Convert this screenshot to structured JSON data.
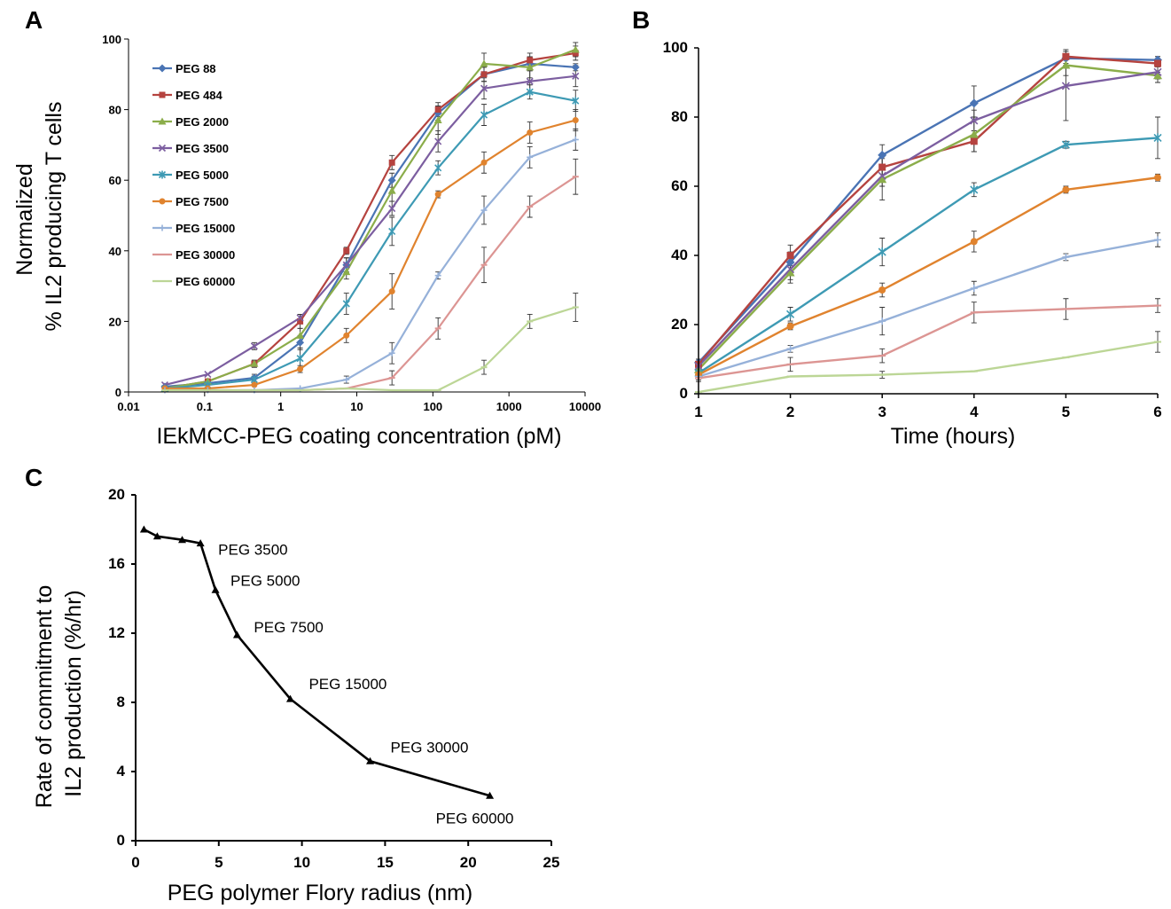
{
  "chart_data": [
    {
      "type": "line",
      "panel_label": "A",
      "xlabel": "IEkMCC-PEG coating concentration (pM)",
      "ylabel": "Normalized % IL2 producing T cells",
      "x_scale": "log",
      "xlim": [
        0.01,
        10000
      ],
      "ylim": [
        0,
        100
      ],
      "x_ticks": [
        0.01,
        0.1,
        1,
        10,
        100,
        1000,
        10000
      ],
      "x_tick_labels": [
        "0.01",
        "0.1",
        "1",
        "10",
        "100",
        "1000",
        "10000"
      ],
      "y_ticks": [
        0,
        20,
        40,
        60,
        80,
        100
      ],
      "legend_position": "top-left",
      "grid": false,
      "x": [
        0.03,
        0.11,
        0.45,
        1.8,
        7.3,
        29,
        117,
        470,
        1880,
        7500
      ],
      "series": [
        {
          "name": "PEG 88",
          "color": "#4a74b4",
          "marker": "diamond",
          "values": [
            1.5,
            2.5,
            4,
            14,
            36,
            60,
            79,
            90,
            93,
            92
          ],
          "errors": [
            0.5,
            0.5,
            1,
            2,
            2,
            2,
            2,
            2,
            2,
            1
          ]
        },
        {
          "name": "PEG 484",
          "color": "#b5433f",
          "marker": "square",
          "values": [
            1,
            3,
            8,
            20,
            40,
            65,
            80,
            90,
            94,
            96
          ],
          "errors": [
            0.5,
            0.5,
            1,
            2,
            1,
            2,
            2,
            2,
            2,
            2
          ]
        },
        {
          "name": "PEG 2000",
          "color": "#8bad4a",
          "marker": "triangle",
          "values": [
            1,
            3,
            8,
            16,
            34,
            57,
            77,
            93,
            92,
            97
          ],
          "errors": [
            0.5,
            0.5,
            1,
            2,
            2,
            3,
            4,
            3,
            3,
            2
          ]
        },
        {
          "name": "PEG 3500",
          "color": "#7c5ea0",
          "marker": "x",
          "values": [
            2,
            5,
            13,
            21,
            36,
            52,
            71,
            86,
            88,
            89.5
          ],
          "errors": [
            0.5,
            0.5,
            1,
            1,
            2,
            2,
            3,
            3,
            3,
            3
          ]
        },
        {
          "name": "PEG 5000",
          "color": "#3e9ab4",
          "marker": "asterisk",
          "values": [
            1,
            2,
            3.5,
            9.5,
            25,
            45.5,
            63.5,
            78.5,
            85,
            82.5
          ],
          "errors": [
            0.5,
            0.5,
            1,
            3,
            3,
            4,
            2,
            3,
            2,
            3
          ]
        },
        {
          "name": "PEG 7500",
          "color": "#e0832e",
          "marker": "circle",
          "values": [
            1,
            1,
            2,
            6.5,
            16,
            28.5,
            56,
            65,
            73.5,
            77
          ],
          "errors": [
            0.5,
            0.5,
            0.5,
            1,
            2,
            5,
            1,
            3,
            3,
            3
          ]
        },
        {
          "name": "PEG 15000",
          "color": "#96b1d9",
          "marker": "plus",
          "values": [
            0.5,
            0.5,
            0.5,
            1,
            3.5,
            11,
            33,
            51.5,
            66.5,
            71.5
          ],
          "errors": [
            0.5,
            0.5,
            0.5,
            0.5,
            1,
            3,
            1,
            4,
            3,
            3
          ]
        },
        {
          "name": "PEG 30000",
          "color": "#dc9593",
          "marker": "dash",
          "values": [
            0.5,
            0.5,
            0.5,
            0.5,
            1,
            4,
            18,
            36,
            52.5,
            61
          ],
          "errors": [
            0.5,
            0.5,
            0.5,
            0.5,
            0.5,
            2,
            3,
            5,
            3,
            5
          ]
        },
        {
          "name": "PEG 60000",
          "color": "#bcd696",
          "marker": "dash",
          "values": [
            0.5,
            0.5,
            0.5,
            0.5,
            1,
            0.5,
            0.5,
            7,
            20,
            24
          ],
          "errors": [
            0.5,
            0.5,
            0.5,
            0.5,
            0.5,
            0.5,
            0.5,
            2,
            2,
            4
          ]
        }
      ]
    },
    {
      "type": "line",
      "panel_label": "B",
      "xlabel": "Time (hours)",
      "ylabel": "",
      "xlim": [
        1,
        6
      ],
      "ylim": [
        0,
        100
      ],
      "x_ticks": [
        1,
        2,
        3,
        4,
        5,
        6
      ],
      "y_ticks": [
        0,
        20,
        40,
        60,
        80,
        100
      ],
      "grid": false,
      "x": [
        1,
        2,
        3,
        4,
        5,
        6
      ],
      "series": [
        {
          "color": "#4a74b4",
          "marker": "diamond",
          "values": [
            9,
            38,
            69,
            84,
            97,
            96.5
          ],
          "errors": [
            1,
            3,
            3,
            5,
            2,
            1
          ]
        },
        {
          "color": "#b5433f",
          "marker": "square",
          "values": [
            8.5,
            40,
            65.5,
            73,
            97.5,
            95.5
          ],
          "errors": [
            1,
            3,
            3,
            3,
            2,
            1
          ]
        },
        {
          "color": "#8bad4a",
          "marker": "triangle",
          "values": [
            7,
            35,
            62,
            75,
            95,
            92
          ],
          "errors": [
            1,
            3,
            6,
            5,
            3,
            1
          ]
        },
        {
          "color": "#7c5ea0",
          "marker": "x",
          "values": [
            8,
            36,
            63,
            79,
            89,
            93
          ],
          "errors": [
            1,
            3,
            3,
            3,
            10,
            3
          ]
        },
        {
          "color": "#3e9ab4",
          "marker": "asterisk",
          "values": [
            6,
            23,
            41,
            59,
            72,
            74
          ],
          "errors": [
            1,
            2,
            4,
            2,
            1,
            6
          ]
        },
        {
          "color": "#e0832e",
          "marker": "circle",
          "values": [
            5.5,
            19.5,
            30,
            44,
            59,
            62.5
          ],
          "errors": [
            1,
            1,
            2,
            3,
            1,
            1
          ]
        },
        {
          "color": "#96b1d9",
          "marker": "plus",
          "values": [
            5,
            13,
            21,
            30.5,
            39.5,
            44.5
          ],
          "errors": [
            1,
            1,
            4,
            2,
            1,
            2
          ]
        },
        {
          "color": "#dc9593",
          "marker": "dash",
          "values": [
            4.5,
            8.5,
            11,
            23.5,
            24.5,
            25.5
          ],
          "errors": [
            1,
            2,
            2,
            3,
            3,
            2
          ]
        },
        {
          "color": "#bcd696",
          "marker": "dash",
          "values": [
            0.5,
            5,
            5.5,
            6.5,
            10.5,
            15
          ],
          "errors": [
            0.5,
            0.5,
            1,
            0.5,
            0.5,
            3
          ]
        }
      ]
    },
    {
      "type": "line",
      "panel_label": "C",
      "xlabel": "PEG polymer Flory radius (nm)",
      "ylabel": "Rate of commitment to IL2 production (%/hr)",
      "xlim": [
        0,
        25
      ],
      "ylim": [
        0,
        20
      ],
      "x_ticks": [
        0,
        5,
        10,
        15,
        20,
        25
      ],
      "y_ticks": [
        0,
        4,
        8,
        12,
        16,
        20
      ],
      "grid": false,
      "color": "#000000",
      "marker": "triangle",
      "x": [
        0.5,
        1.3,
        2.8,
        3.9,
        4.8,
        6.1,
        9.3,
        14.1,
        21.3
      ],
      "values": [
        18.0,
        17.6,
        17.4,
        17.2,
        14.5,
        11.9,
        8.2,
        4.6,
        2.6
      ],
      "annotations": [
        {
          "text": "PEG 3500",
          "x": 3.9,
          "y": 17.2
        },
        {
          "text": "PEG 5000",
          "x": 4.8,
          "y": 14.5
        },
        {
          "text": "PEG 7500",
          "x": 6.1,
          "y": 11.9
        },
        {
          "text": "PEG 15000",
          "x": 9.3,
          "y": 8.2
        },
        {
          "text": "PEG 30000",
          "x": 14.1,
          "y": 4.6
        },
        {
          "text": "PEG 60000",
          "x": 21.3,
          "y": 2.6
        }
      ]
    }
  ]
}
